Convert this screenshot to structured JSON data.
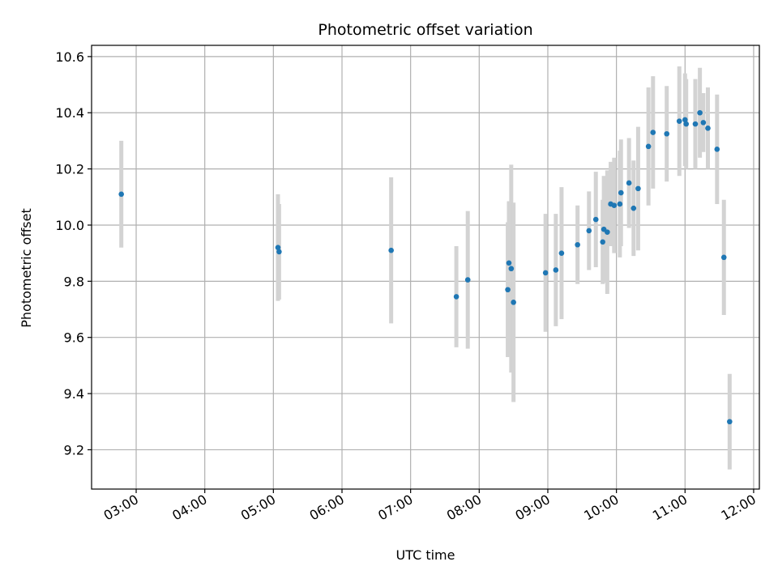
{
  "chart_data": {
    "type": "scatter",
    "title": "Photometric offset variation",
    "xlabel": "UTC time",
    "ylabel": "Photometric offset",
    "x_ticks": [
      "03:00",
      "04:00",
      "05:00",
      "06:00",
      "07:00",
      "08:00",
      "09:00",
      "10:00",
      "11:00",
      "12:00"
    ],
    "y_ticks": [
      "9.2",
      "9.4",
      "9.6",
      "9.8",
      "10.0",
      "10.2",
      "10.4",
      "10.6"
    ],
    "xlim": [
      "02:21",
      "12:05"
    ],
    "ylim": [
      9.06,
      10.64
    ],
    "grid": true,
    "colors": {
      "point": "#1f77b4",
      "errorbar": "#d3d3d3",
      "grid": "#b0b0b0"
    },
    "points": [
      {
        "x": "02:47",
        "y": 10.11,
        "err": 0.19
      },
      {
        "x": "05:04",
        "y": 9.92,
        "err": 0.19
      },
      {
        "x": "05:05",
        "y": 9.905,
        "err": 0.17
      },
      {
        "x": "06:43",
        "y": 9.91,
        "err": 0.26
      },
      {
        "x": "07:40",
        "y": 9.745,
        "err": 0.18
      },
      {
        "x": "07:50",
        "y": 9.805,
        "err": 0.245
      },
      {
        "x": "08:25",
        "y": 9.77,
        "err": 0.24
      },
      {
        "x": "08:26",
        "y": 9.865,
        "err": 0.22
      },
      {
        "x": "08:28",
        "y": 9.845,
        "err": 0.37
      },
      {
        "x": "08:30",
        "y": 9.725,
        "err": 0.355
      },
      {
        "x": "08:58",
        "y": 9.83,
        "err": 0.21
      },
      {
        "x": "09:07",
        "y": 9.84,
        "err": 0.2
      },
      {
        "x": "09:12",
        "y": 9.9,
        "err": 0.235
      },
      {
        "x": "09:26",
        "y": 9.93,
        "err": 0.14
      },
      {
        "x": "09:36",
        "y": 9.98,
        "err": 0.14
      },
      {
        "x": "09:42",
        "y": 10.02,
        "err": 0.17
      },
      {
        "x": "09:48",
        "y": 9.94,
        "err": 0.15
      },
      {
        "x": "09:49",
        "y": 9.985,
        "err": 0.19
      },
      {
        "x": "09:52",
        "y": 9.975,
        "err": 0.22
      },
      {
        "x": "09:55",
        "y": 10.075,
        "err": 0.15
      },
      {
        "x": "09:58",
        "y": 10.07,
        "err": 0.17
      },
      {
        "x": "10:03",
        "y": 10.075,
        "err": 0.19
      },
      {
        "x": "10:04",
        "y": 10.115,
        "err": 0.19
      },
      {
        "x": "10:11",
        "y": 10.15,
        "err": 0.16
      },
      {
        "x": "10:15",
        "y": 10.06,
        "err": 0.17
      },
      {
        "x": "10:19",
        "y": 10.13,
        "err": 0.22
      },
      {
        "x": "10:28",
        "y": 10.28,
        "err": 0.21
      },
      {
        "x": "10:32",
        "y": 10.33,
        "err": 0.2
      },
      {
        "x": "10:44",
        "y": 10.325,
        "err": 0.17
      },
      {
        "x": "10:55",
        "y": 10.37,
        "err": 0.195
      },
      {
        "x": "11:00",
        "y": 10.375,
        "err": 0.165
      },
      {
        "x": "11:01",
        "y": 10.36,
        "err": 0.16
      },
      {
        "x": "11:09",
        "y": 10.36,
        "err": 0.16
      },
      {
        "x": "11:13",
        "y": 10.4,
        "err": 0.16
      },
      {
        "x": "11:16",
        "y": 10.365,
        "err": 0.105
      },
      {
        "x": "11:20",
        "y": 10.345,
        "err": 0.145
      },
      {
        "x": "11:28",
        "y": 10.27,
        "err": 0.195
      },
      {
        "x": "11:34",
        "y": 9.885,
        "err": 0.205
      },
      {
        "x": "11:39",
        "y": 9.3,
        "err": 0.17
      }
    ]
  }
}
